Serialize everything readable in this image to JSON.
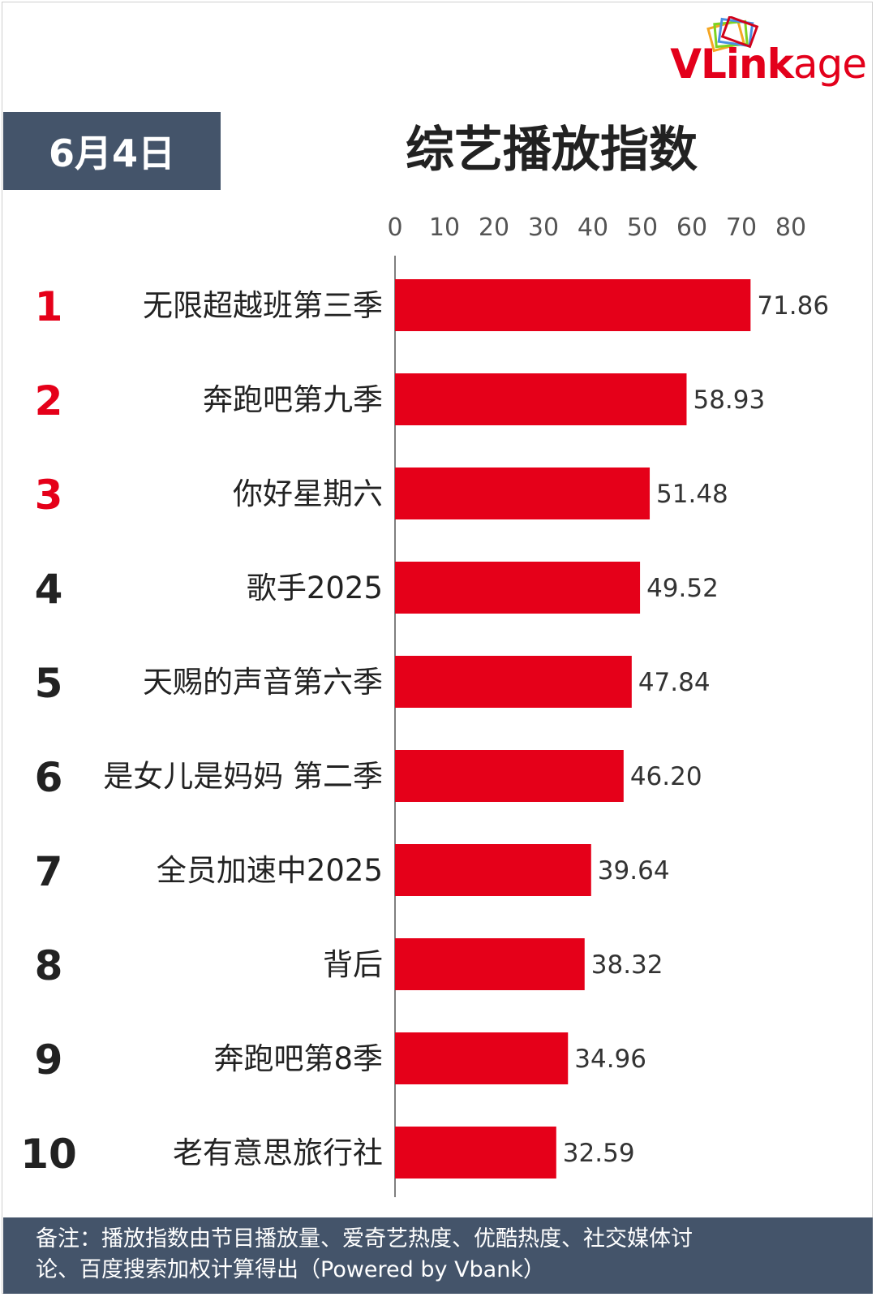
{
  "logo": {
    "part1": "VL",
    "part2": "ink",
    "part3": "age"
  },
  "date": "6月4日",
  "title": "综艺播放指数",
  "chart_data": {
    "type": "bar",
    "orientation": "horizontal",
    "title": "综艺播放指数",
    "ranks": [
      "1",
      "2",
      "3",
      "4",
      "5",
      "6",
      "7",
      "8",
      "9",
      "10"
    ],
    "categories": [
      "无限超越班第三季",
      "奔跑吧第九季",
      "你好星期六",
      "歌手2025",
      "天赐的声音第六季",
      "是女儿是妈妈 第二季",
      "全员加速中2025",
      "背后",
      "奔跑吧第8季",
      "老有意思旅行社"
    ],
    "values": [
      71.86,
      58.93,
      51.48,
      49.52,
      47.84,
      46.2,
      39.64,
      38.32,
      34.96,
      32.59
    ],
    "value_labels": [
      "71.86",
      "58.93",
      "51.48",
      "49.52",
      "47.84",
      "46.20",
      "39.64",
      "38.32",
      "34.96",
      "32.59"
    ],
    "xlim": [
      0,
      80
    ],
    "xticks": [
      0,
      10,
      20,
      30,
      40,
      50,
      60,
      70,
      80
    ],
    "axis_position": "top",
    "grid": false,
    "colors": {
      "bar": "#e50019",
      "top_rank": "#e50019",
      "rank": "#222222"
    }
  },
  "footer": {
    "line1": "备注：播放指数由节目播放量、爱奇艺热度、优酷热度、社交媒体讨",
    "line2": "论、百度搜索加权计算得出（Powered by Vbank）"
  }
}
